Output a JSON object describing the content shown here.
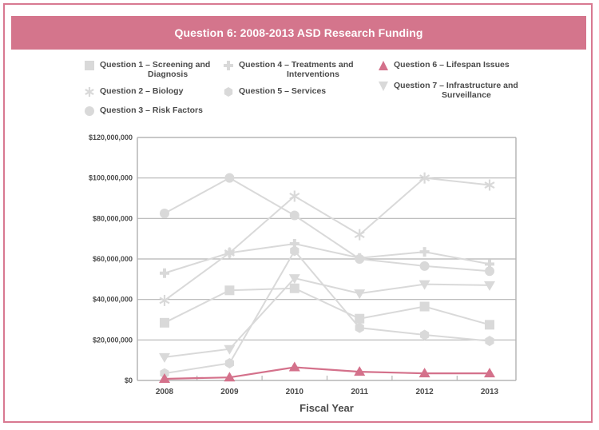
{
  "chart_data": {
    "type": "line",
    "title": "Question 6: 2008-2013 ASD Research Funding",
    "xlabel": "Fiscal Year",
    "ylabel": "",
    "categories": [
      "2008",
      "2009",
      "2010",
      "2011",
      "2012",
      "2013"
    ],
    "ylim": [
      0,
      120000000
    ],
    "yticks": [
      0,
      20000000,
      40000000,
      60000000,
      80000000,
      100000000,
      120000000
    ],
    "ytick_labels": [
      "$0",
      "$20,000,000",
      "$40,000,000",
      "$60,000,000",
      "$80,000,000",
      "$100,000,000",
      "$120,000,000"
    ],
    "grid": true,
    "legend_position": "top",
    "series": [
      {
        "name": "Question 1 – Screening and Diagnosis",
        "line1": "Question 1 – Screening and",
        "line2": "Diagnosis",
        "marker": "square",
        "color": "#d9d9d9",
        "values": [
          28500000,
          44500000,
          45500000,
          30500000,
          36500000,
          27500000
        ]
      },
      {
        "name": "Question 2 – Biology",
        "line1": "Question 2 – Biology",
        "line2": "",
        "marker": "asterisk",
        "color": "#d9d9d9",
        "values": [
          39500000,
          63000000,
          91000000,
          72000000,
          100000000,
          96500000
        ]
      },
      {
        "name": "Question 3 – Risk Factors",
        "line1": "Question 3 – Risk Factors",
        "line2": "",
        "marker": "circle",
        "color": "#d9d9d9",
        "values": [
          82500000,
          100000000,
          81500000,
          60000000,
          56500000,
          54000000
        ]
      },
      {
        "name": "Question 4 – Treatments and Interventions",
        "line1": "Question 4 – Treatments and",
        "line2": "Interventions",
        "marker": "plus",
        "color": "#d9d9d9",
        "values": [
          53000000,
          63000000,
          67500000,
          60500000,
          63500000,
          57500000
        ]
      },
      {
        "name": "Question 5 – Services",
        "line1": "Question 5 – Services",
        "line2": "",
        "marker": "hexagon",
        "color": "#d9d9d9",
        "values": [
          3500000,
          8500000,
          64000000,
          26000000,
          22500000,
          19500000
        ]
      },
      {
        "name": "Question 6 – Lifespan Issues",
        "line1": "Question 6 – Lifespan Issues",
        "line2": "",
        "marker": "triangle-up",
        "color": "#d4718b",
        "values": [
          800000,
          1500000,
          6500000,
          4300000,
          3500000,
          3500000
        ]
      },
      {
        "name": "Question 7 – Infrastructure and Surveillance",
        "line1": "Question 7 – Infrastructure and",
        "line2": "Surveillance",
        "marker": "triangle-down",
        "color": "#d9d9d9",
        "values": [
          11500000,
          15500000,
          50500000,
          43000000,
          47500000,
          47000000
        ]
      }
    ]
  }
}
